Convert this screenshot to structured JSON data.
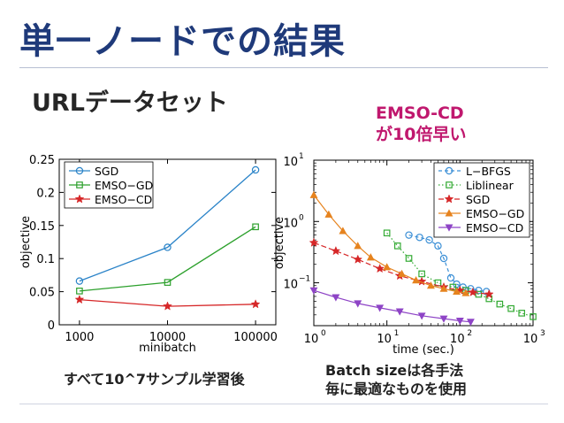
{
  "title": "単一ノードでの結果",
  "subtitle": "URLデータセット",
  "callout": [
    "EMSO-CD",
    "が10倍早い"
  ],
  "left_caption": "すべて10^7サンプル学習後",
  "right_caption": [
    "Batch sizeは各手法",
    "毎に最適なものを使用"
  ],
  "colors": {
    "sgd": "#2a83c8",
    "gd": "#2ca02c",
    "cd": "#d62728",
    "lbfgs": "#3b8fd6",
    "liblinear": "#33aa33",
    "emso_gd": "#e6831e",
    "emso_cd": "#8e44c6"
  },
  "chart_data": [
    {
      "type": "line",
      "xlabel": "minibatch",
      "ylabel": "objective",
      "x_scale": "log",
      "categories": [
        "1000",
        "10000",
        "100000"
      ],
      "x": [
        1000,
        10000,
        100000
      ],
      "ylim": [
        0,
        0.25
      ],
      "yticks": [
        "0",
        "0.05",
        "0.1",
        "0.15",
        "0.2",
        "0.25"
      ],
      "legend_position": "top-left",
      "series": [
        {
          "name": "SGD",
          "values": [
            0.066,
            0.117,
            0.234
          ]
        },
        {
          "name": "EMSO−GD",
          "values": [
            0.051,
            0.064,
            0.148
          ]
        },
        {
          "name": "EMSO−CD",
          "values": [
            0.038,
            0.028,
            0.031
          ]
        }
      ]
    },
    {
      "type": "line",
      "xlabel": "time (sec.)",
      "ylabel": "objective",
      "x_scale": "log",
      "y_scale": "log",
      "xlim": [
        1,
        1000
      ],
      "ylim": [
        0.02,
        10
      ],
      "xticks": [
        "10",
        "10",
        "10",
        "10"
      ],
      "xtick_exps": [
        "0",
        "1",
        "2",
        "3"
      ],
      "yticks": [
        "10",
        "10",
        "10"
      ],
      "ytick_exps": [
        "−1",
        "0",
        "1"
      ],
      "legend_position": "top-right",
      "series": [
        {
          "name": "L−BFGS",
          "points": [
            [
              20,
              0.6
            ],
            [
              28,
              0.55
            ],
            [
              38,
              0.5
            ],
            [
              50,
              0.4
            ],
            [
              60,
              0.25
            ],
            [
              75,
              0.12
            ],
            [
              90,
              0.095
            ],
            [
              110,
              0.085
            ],
            [
              140,
              0.08
            ],
            [
              180,
              0.075
            ],
            [
              230,
              0.072
            ]
          ]
        },
        {
          "name": "Liblinear",
          "points": [
            [
              10,
              0.65
            ],
            [
              14,
              0.4
            ],
            [
              20,
              0.25
            ],
            [
              30,
              0.14
            ],
            [
              50,
              0.1
            ],
            [
              80,
              0.085
            ],
            [
              120,
              0.075
            ],
            [
              180,
              0.065
            ],
            [
              250,
              0.055
            ],
            [
              350,
              0.045
            ],
            [
              500,
              0.038
            ],
            [
              700,
              0.032
            ],
            [
              1000,
              0.028
            ]
          ]
        },
        {
          "name": "SGD",
          "points": [
            [
              1,
              0.45
            ],
            [
              2,
              0.33
            ],
            [
              4,
              0.24
            ],
            [
              8,
              0.17
            ],
            [
              15,
              0.13
            ],
            [
              30,
              0.105
            ],
            [
              60,
              0.085
            ],
            [
              100,
              0.075
            ],
            [
              150,
              0.07
            ],
            [
              250,
              0.065
            ]
          ]
        },
        {
          "name": "EMSO−GD",
          "points": [
            [
              1,
              2.7
            ],
            [
              1.6,
              1.3
            ],
            [
              2.5,
              0.7
            ],
            [
              4,
              0.4
            ],
            [
              6,
              0.26
            ],
            [
              10,
              0.18
            ],
            [
              16,
              0.14
            ],
            [
              25,
              0.11
            ],
            [
              40,
              0.09
            ],
            [
              60,
              0.08
            ],
            [
              90,
              0.072
            ],
            [
              120,
              0.068
            ]
          ]
        },
        {
          "name": "EMSO−CD",
          "points": [
            [
              1,
              0.075
            ],
            [
              2,
              0.058
            ],
            [
              4,
              0.046
            ],
            [
              8,
              0.039
            ],
            [
              15,
              0.034
            ],
            [
              30,
              0.029
            ],
            [
              60,
              0.026
            ],
            [
              100,
              0.024
            ],
            [
              140,
              0.023
            ]
          ]
        }
      ]
    }
  ]
}
